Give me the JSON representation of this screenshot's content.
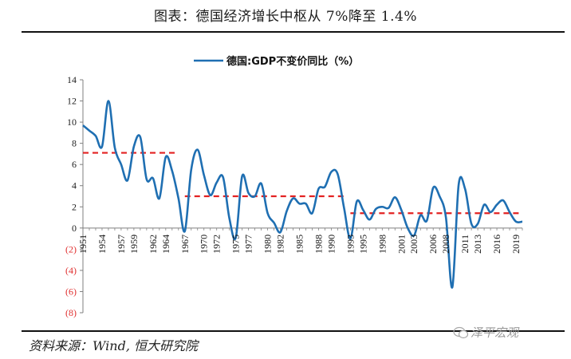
{
  "header": {
    "title": "图表：德国经济增长中枢从 7%降至 1.4%"
  },
  "footer": {
    "source": "资料来源：Wind, 恒大研究院",
    "watermark": "泽平宏观"
  },
  "colors": {
    "series": "#1f6fb2",
    "reference": "#e32222",
    "negative_label": "#e03030"
  },
  "chart_data": {
    "type": "line",
    "legend": "德国:GDP不变价同比（%）",
    "legend_position": "top-center",
    "grid": false,
    "x": [
      1951,
      1952,
      1953,
      1954,
      1955,
      1956,
      1957,
      1958,
      1959,
      1960,
      1961,
      1962,
      1963,
      1964,
      1965,
      1966,
      1967,
      1968,
      1969,
      1970,
      1971,
      1972,
      1973,
      1974,
      1975,
      1976,
      1977,
      1978,
      1979,
      1980,
      1981,
      1982,
      1983,
      1984,
      1985,
      1986,
      1987,
      1988,
      1989,
      1990,
      1991,
      1992,
      1993,
      1994,
      1995,
      1996,
      1997,
      1998,
      1999,
      2000,
      2001,
      2002,
      2003,
      2004,
      2005,
      2006,
      2007,
      2008,
      2009,
      2010,
      2011,
      2012,
      2013,
      2014,
      2015,
      2016,
      2017,
      2018,
      2019,
      2020
    ],
    "series": [
      {
        "name": "德国:GDP不变价同比（%）",
        "values": [
          9.7,
          9.2,
          8.7,
          7.7,
          12.0,
          7.6,
          6.0,
          4.5,
          7.7,
          8.6,
          4.6,
          4.7,
          2.8,
          6.7,
          5.4,
          2.8,
          -0.3,
          5.5,
          7.4,
          5.0,
          3.1,
          4.3,
          4.8,
          0.9,
          -0.9,
          4.9,
          3.3,
          3.0,
          4.2,
          1.4,
          0.5,
          -0.4,
          1.6,
          2.8,
          2.3,
          2.3,
          1.4,
          3.7,
          3.9,
          5.3,
          5.1,
          1.9,
          -1.0,
          2.5,
          1.7,
          0.8,
          1.8,
          2.0,
          1.9,
          2.9,
          1.7,
          0.0,
          -0.7,
          1.2,
          0.7,
          3.8,
          3.0,
          1.0,
          -5.6,
          4.1,
          3.7,
          0.4,
          0.4,
          2.2,
          1.5,
          2.2,
          2.6,
          1.5,
          0.6,
          0.6
        ]
      }
    ],
    "reference_lines": [
      {
        "x_start": 1951,
        "x_end": 1966,
        "value": 7.1
      },
      {
        "x_start": 1967,
        "x_end": 1992,
        "value": 3.0
      },
      {
        "x_start": 1993,
        "x_end": 2020,
        "value": 1.4
      }
    ],
    "ylim": [
      -8,
      14
    ],
    "yticks": [
      14,
      12,
      10,
      8,
      6,
      4,
      2,
      0,
      -2,
      -4,
      -6,
      -8
    ],
    "ytick_labels": [
      "14",
      "12",
      "10",
      "8",
      "6",
      "4",
      "2",
      "0",
      "(2)",
      "(4)",
      "(6)",
      "(8)"
    ],
    "xtick_labels": [
      "1951",
      "1954",
      "1957",
      "1959",
      "1962",
      "1964",
      "1967",
      "1970",
      "1972",
      "1975",
      "1977",
      "1980",
      "1982",
      "1985",
      "1988",
      "1990",
      "1993",
      "1995",
      "1998",
      "2001",
      "2003",
      "2006",
      "2008",
      "2011",
      "2013",
      "2016",
      "2019"
    ],
    "xlabel": "",
    "ylabel": ""
  }
}
